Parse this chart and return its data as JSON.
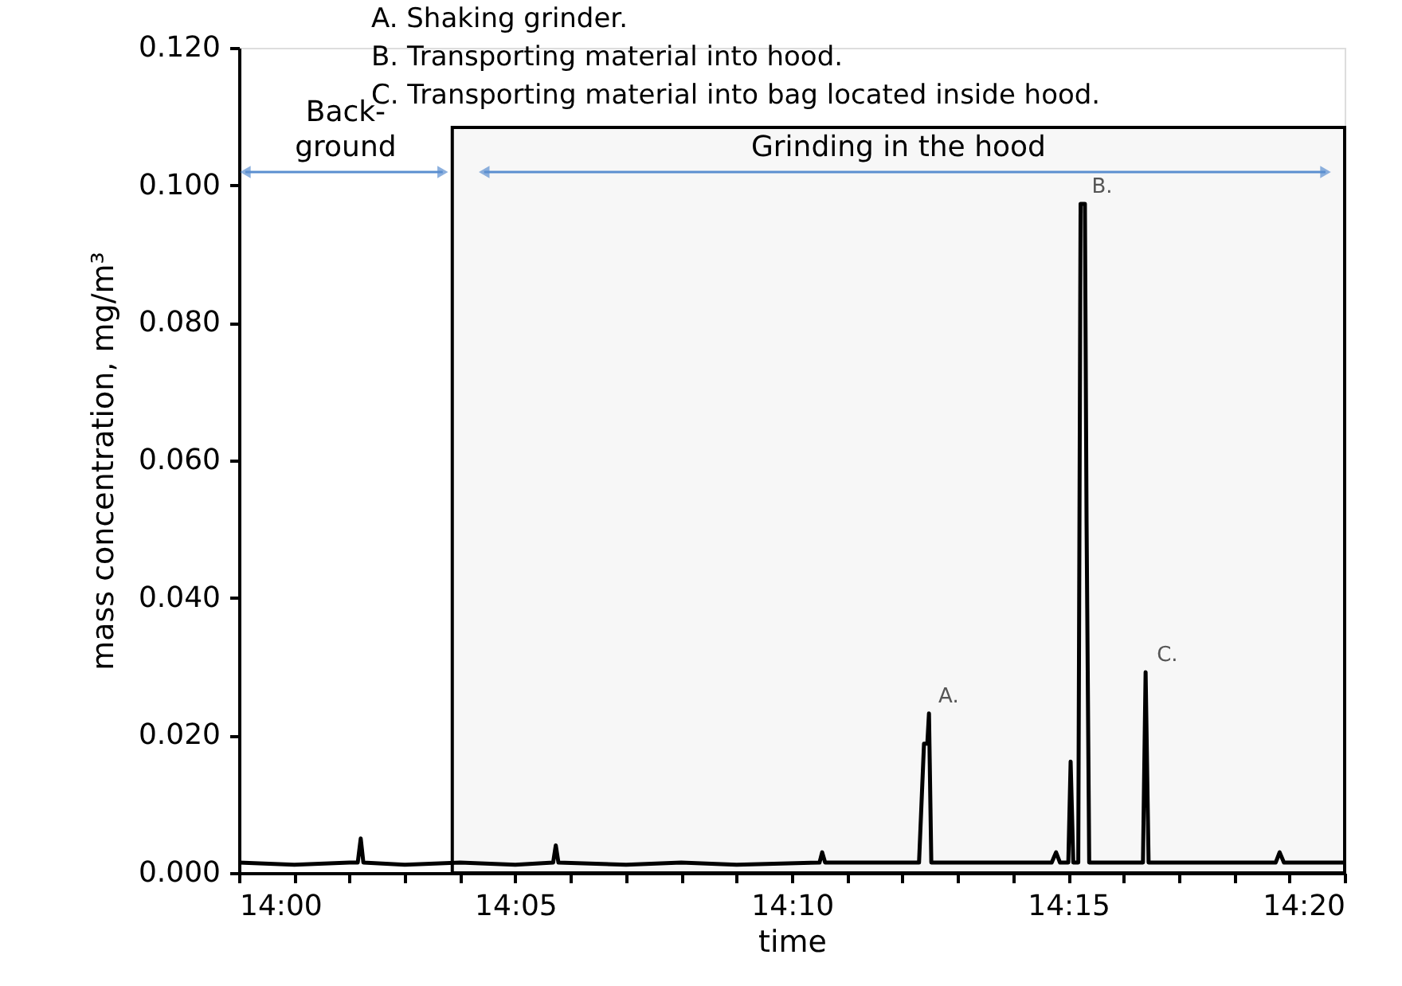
{
  "chart_data": {
    "type": "line",
    "xlabel": "time",
    "ylabel": "mass concentration, mg/m³",
    "color": "#000000",
    "x": [
      14.0,
      14.0167,
      14.0333,
      14.0358,
      14.0367,
      14.0375,
      14.05,
      14.0667,
      14.0833,
      14.0947,
      14.0955,
      14.0963,
      14.1167,
      14.1333,
      14.15,
      14.175,
      14.1758,
      14.1767,
      14.205,
      14.2065,
      14.2075,
      14.208,
      14.2087,
      14.245,
      14.2463,
      14.2475,
      14.25,
      14.2507,
      14.2515,
      14.253,
      14.2537,
      14.255,
      14.2555,
      14.2563,
      14.2725,
      14.2733,
      14.2742,
      14.3125,
      14.3137,
      14.315,
      14.3333
    ],
    "values": [
      0.0015,
      0.0012,
      0.0015,
      0.0015,
      0.005,
      0.0015,
      0.0012,
      0.0015,
      0.0012,
      0.0015,
      0.004,
      0.0015,
      0.0012,
      0.0015,
      0.0012,
      0.0015,
      0.003,
      0.0015,
      0.0015,
      0.0188,
      0.0188,
      0.0232,
      0.0015,
      0.0015,
      0.003,
      0.0015,
      0.0015,
      0.0162,
      0.0015,
      0.0015,
      0.0973,
      0.0973,
      0.0512,
      0.0015,
      0.0015,
      0.0292,
      0.0015,
      0.0015,
      0.003,
      0.0015,
      0.0015
    ],
    "xlim": [
      14.0,
      14.3333
    ],
    "xticks": [
      {
        "value": 14.0,
        "label": "14:00"
      },
      {
        "value": 14.0167,
        "label": null
      },
      {
        "value": 14.0333,
        "label": null
      },
      {
        "value": 14.05,
        "label": null
      },
      {
        "value": 14.0667,
        "label": null
      },
      {
        "value": 14.0833,
        "label": "14:05"
      },
      {
        "value": 14.1,
        "label": null
      },
      {
        "value": 14.1167,
        "label": null
      },
      {
        "value": 14.1333,
        "label": null
      },
      {
        "value": 14.15,
        "label": null
      },
      {
        "value": 14.1667,
        "label": "14:10"
      },
      {
        "value": 14.1833,
        "label": null
      },
      {
        "value": 14.2,
        "label": null
      },
      {
        "value": 14.2167,
        "label": null
      },
      {
        "value": 14.2333,
        "label": null
      },
      {
        "value": 14.25,
        "label": "14:15"
      },
      {
        "value": 14.2667,
        "label": null
      },
      {
        "value": 14.2833,
        "label": null
      },
      {
        "value": 14.3,
        "label": null
      },
      {
        "value": 14.3167,
        "label": null
      },
      {
        "value": 14.3333,
        "label": "14:20"
      }
    ],
    "ylim": [
      0,
      0.12
    ],
    "yticks": [
      {
        "value": 0,
        "label": "0.000"
      },
      {
        "value": 0.02,
        "label": "0.020"
      },
      {
        "value": 0.04,
        "label": "0.040"
      },
      {
        "value": 0.06,
        "label": "0.060"
      },
      {
        "value": 0.08,
        "label": "0.080"
      },
      {
        "value": 0.1,
        "label": "0.100"
      },
      {
        "value": 0.12,
        "label": "0.120"
      }
    ],
    "bands": [
      {
        "axis": "x",
        "from": 14.0643,
        "to": 14.3333,
        "label": "Grinding in the hood",
        "color": "#000000"
      }
    ],
    "annotations": [
      "A. Shaking grinder.",
      "B. Transporting material into hood.",
      "C. Transporting material into bag located inside hood.",
      "Back-ground",
      {
        "text": "A.",
        "x": 14.2075,
        "y": 0.0232
      },
      {
        "text": "B.",
        "x": 14.2537,
        "y": 0.0973
      },
      {
        "text": "C.",
        "x": 14.2733,
        "y": 0.0292
      }
    ]
  }
}
